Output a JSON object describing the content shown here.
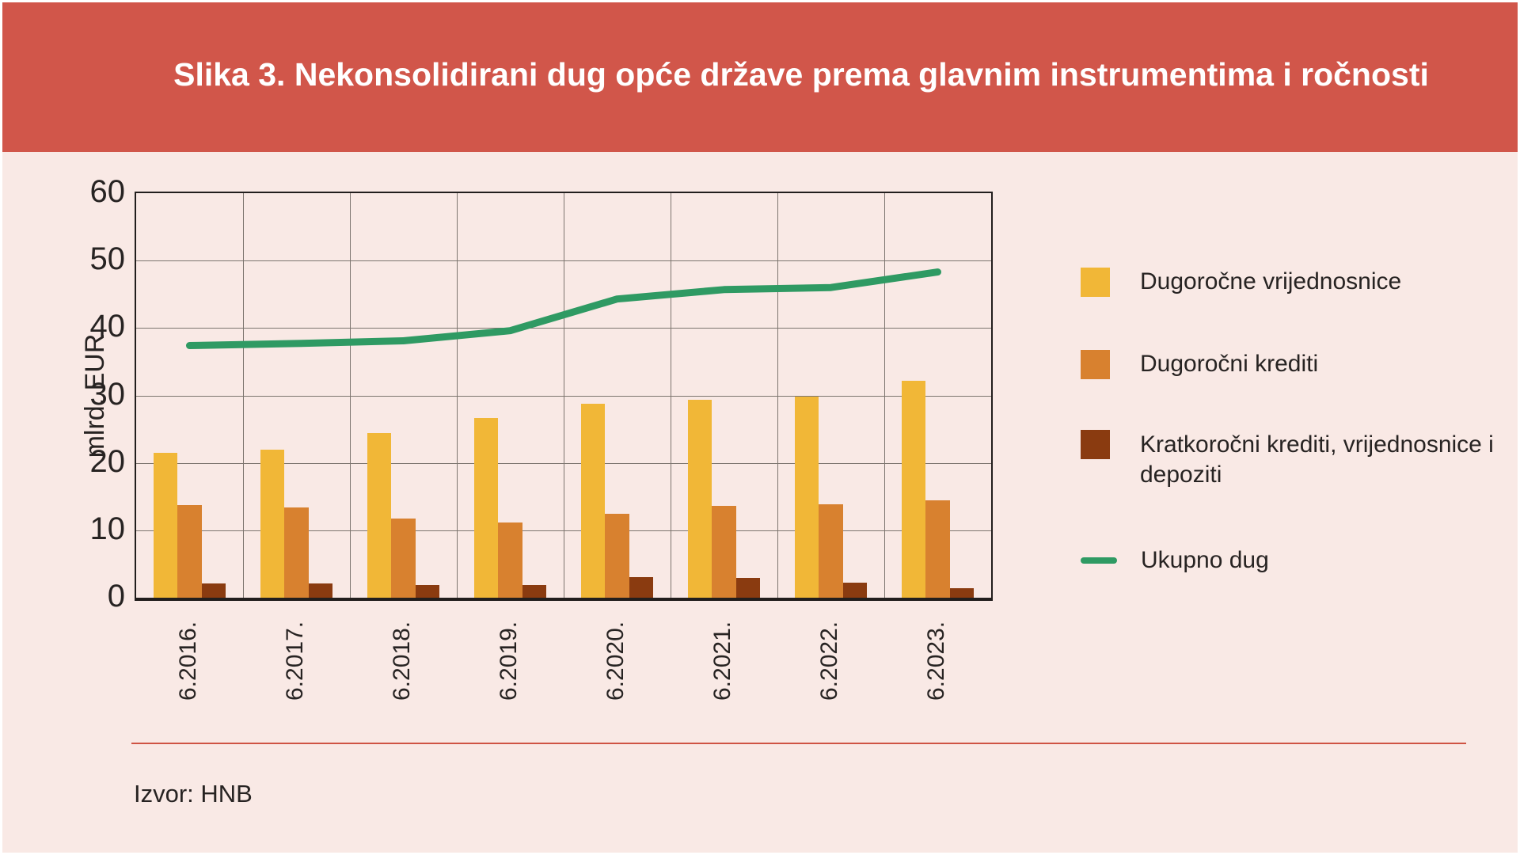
{
  "page": {
    "title": "Slika 3. Nekonsolidirani dug opće države prema glavnim instrumentima i ročnosti",
    "source": "Izvor: HNB"
  },
  "colors": {
    "header_bg": "#d1564a",
    "page_bg": "#f9e9e5",
    "separator": "#cf5343",
    "grid": "#7d756f",
    "frame": "#221e1d",
    "text": "#272322",
    "title_text": "#ffffff"
  },
  "chart_data": {
    "type": "bar+line",
    "title": "Slika 3. Nekonsolidirani dug opće države prema glavnim instrumentima i ročnosti",
    "xlabel": "",
    "ylabel": "mlrd. EUR",
    "ylim": [
      0,
      60
    ],
    "yticks": [
      60,
      50,
      40,
      30,
      20,
      10,
      0
    ],
    "grid": true,
    "legend_position": "right",
    "categories": [
      "6.2016.",
      "6.2017.",
      "6.2018.",
      "6.2019.",
      "6.2020.",
      "6.2021.",
      "6.2022.",
      "6.2023."
    ],
    "series": [
      {
        "name": "Dugoročne vrijednosnice",
        "type": "bar",
        "color": "#f1b737",
        "values": [
          21.5,
          22.0,
          24.4,
          26.6,
          28.8,
          29.3,
          29.8,
          32.2
        ]
      },
      {
        "name": "Dugoročni krediti",
        "type": "bar",
        "color": "#d8812f",
        "values": [
          13.7,
          13.4,
          11.8,
          11.1,
          12.5,
          13.6,
          13.9,
          14.5
        ]
      },
      {
        "name": "Kratkoročni krediti, vrijednosnice i depoziti",
        "type": "bar",
        "color": "#8a3b10",
        "values": [
          2.1,
          2.1,
          1.9,
          1.9,
          3.0,
          2.9,
          2.2,
          1.4
        ]
      },
      {
        "name": "Ukupno dug",
        "type": "line",
        "color": "#2f9a63",
        "values": [
          37.4,
          37.7,
          38.1,
          39.6,
          44.3,
          45.7,
          46.0,
          48.3
        ]
      }
    ]
  }
}
